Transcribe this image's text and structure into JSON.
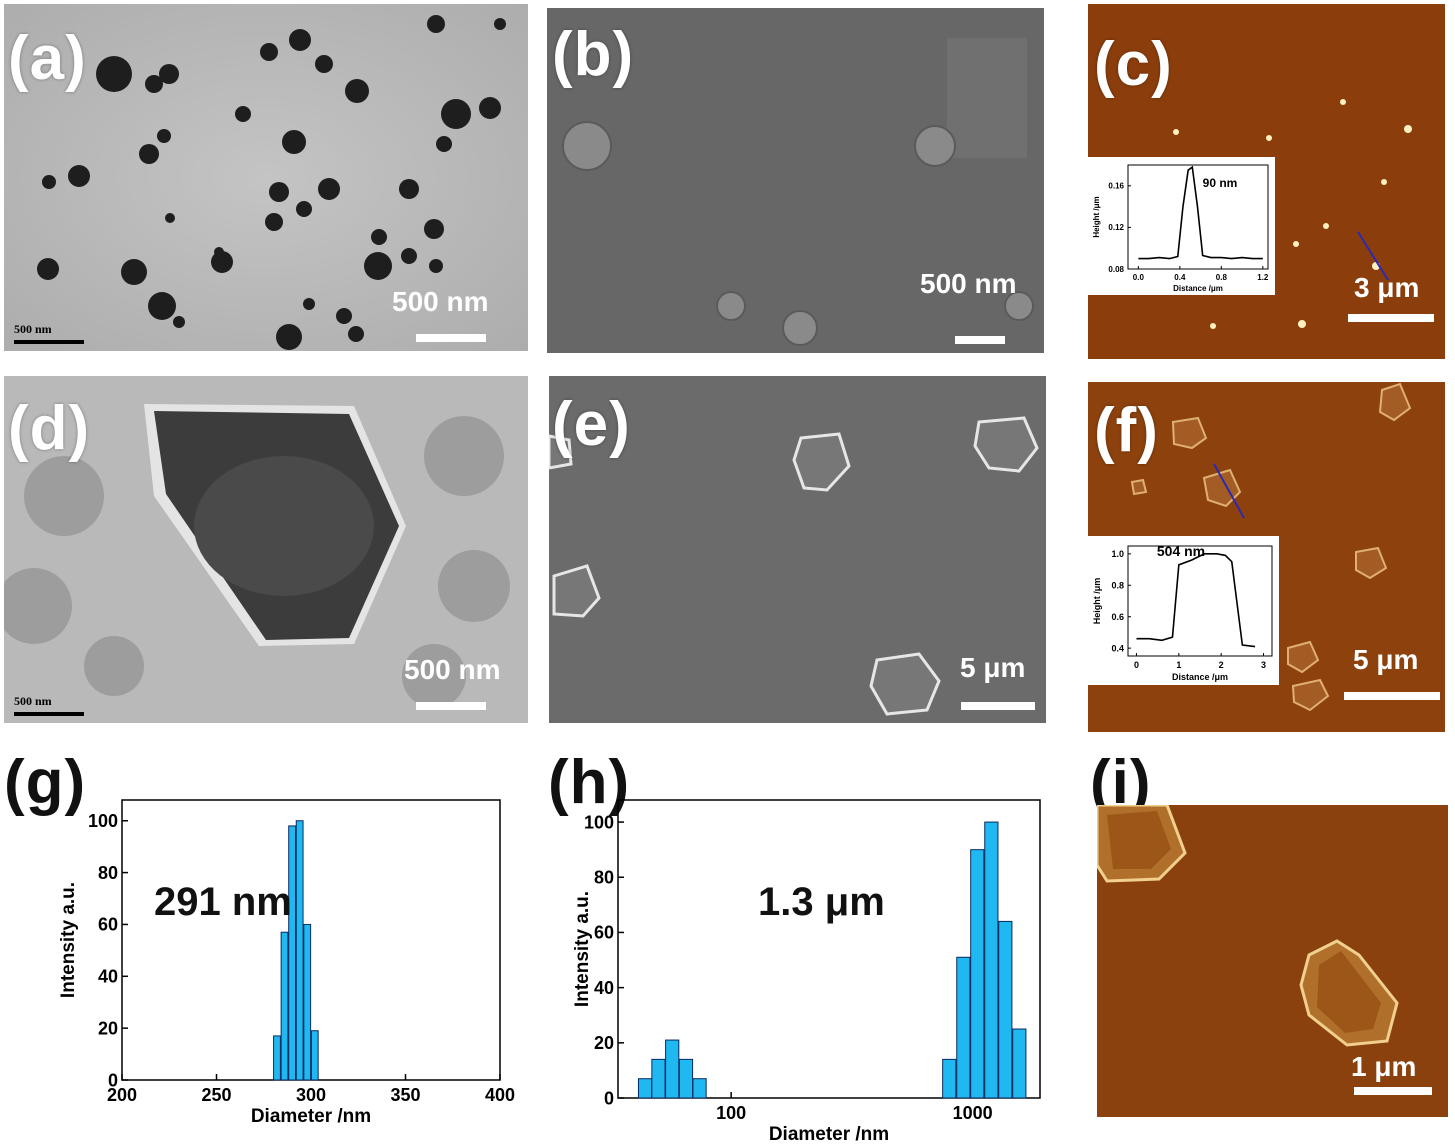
{
  "panels": {
    "a": {
      "letter": "(a)",
      "scale": "500 nm",
      "tiny_scale": "500 nm"
    },
    "b": {
      "letter": "(b)",
      "scale": "500 nm"
    },
    "c": {
      "letter": "(c)",
      "scale": "3 μm"
    },
    "d": {
      "letter": "(d)",
      "scale": "500 nm",
      "tiny_scale": "500 nm"
    },
    "e": {
      "letter": "(e)",
      "scale": "5 μm"
    },
    "f": {
      "letter": "(f)",
      "scale": "5 μm"
    },
    "g": {
      "letter": "(g)",
      "annotation": "291 nm"
    },
    "h": {
      "letter": "(h)",
      "annotation": "1.3 μm"
    },
    "i": {
      "letter": "(i)",
      "scale": "1 μm"
    }
  },
  "colors": {
    "bar_fill": "#1fb8f0",
    "afm_brown": "#8a3d0c",
    "sem_gray": "#6a6a6a",
    "tem_gray": "#bdbdbd"
  },
  "chart_data": [
    {
      "id": "c-inset",
      "type": "line",
      "annotation": "90 nm",
      "xlabel": "Distance /μm",
      "ylabel": "Height /μm",
      "xlim": [
        -0.1,
        1.25
      ],
      "ylim": [
        0.08,
        0.18
      ],
      "xticks": [
        "0.0",
        "0.4",
        "0.8",
        "1.2"
      ],
      "xtick_values": [
        0,
        0.4,
        0.8,
        1.2
      ],
      "yticks": [
        "0.08",
        "0.12",
        "0.16"
      ],
      "ytick_values": [
        0.08,
        0.12,
        0.16
      ],
      "x": [
        0,
        0.1,
        0.2,
        0.3,
        0.38,
        0.43,
        0.48,
        0.52,
        0.57,
        0.62,
        0.7,
        0.8,
        0.9,
        1.0,
        1.1,
        1.2
      ],
      "y": [
        0.09,
        0.09,
        0.091,
        0.09,
        0.092,
        0.14,
        0.175,
        0.178,
        0.14,
        0.093,
        0.091,
        0.091,
        0.09,
        0.091,
        0.09,
        0.09
      ]
    },
    {
      "id": "f-inset",
      "type": "line",
      "annotation": "504 nm",
      "xlabel": "Distance /μm",
      "ylabel": "Height /μm",
      "xlim": [
        -0.2,
        3.2
      ],
      "ylim": [
        0.35,
        1.05
      ],
      "xticks": [
        "0",
        "1",
        "2",
        "3"
      ],
      "xtick_values": [
        0,
        1,
        2,
        3
      ],
      "yticks": [
        "0.4",
        "0.6",
        "0.8",
        "1.0"
      ],
      "ytick_values": [
        0.4,
        0.6,
        0.8,
        1.0
      ],
      "x": [
        0,
        0.3,
        0.6,
        0.85,
        1.0,
        1.3,
        1.6,
        1.9,
        2.1,
        2.25,
        2.5,
        2.8
      ],
      "y": [
        0.46,
        0.46,
        0.45,
        0.47,
        0.93,
        0.96,
        1.0,
        1.0,
        0.99,
        0.95,
        0.42,
        0.41
      ]
    },
    {
      "id": "g",
      "type": "bar",
      "xlabel": "Diameter /nm",
      "ylabel": "Intensity a.u.",
      "xlim": [
        200,
        400
      ],
      "ylim": [
        0,
        108
      ],
      "xticks": [
        "200",
        "250",
        "300",
        "350",
        "400"
      ],
      "xtick_values": [
        200,
        250,
        300,
        350,
        400
      ],
      "yticks": [
        "0",
        "20",
        "40",
        "60",
        "80",
        "100"
      ],
      "ytick_values": [
        0,
        20,
        40,
        60,
        80,
        100
      ],
      "x": [
        282,
        286,
        290,
        294,
        298,
        302
      ],
      "bar_width": 3.6,
      "values": [
        17,
        57,
        98,
        100,
        60,
        19
      ]
    },
    {
      "id": "h",
      "type": "bar",
      "xscale": "log",
      "xlabel": "Diameter /nm",
      "ylabel": "Intensity a.u.",
      "xlim": [
        34,
        1900
      ],
      "ylim": [
        0,
        108
      ],
      "xticks": [
        "100",
        "1000"
      ],
      "xtick_values": [
        100,
        1000
      ],
      "yticks": [
        "0",
        "20",
        "40",
        "60",
        "80",
        "100"
      ],
      "ytick_values": [
        0,
        20,
        40,
        60,
        80,
        100
      ],
      "x": [
        44,
        50,
        57,
        65,
        74,
        800,
        915,
        1045,
        1195,
        1365,
        1560
      ],
      "values": [
        7,
        14,
        21,
        14,
        7,
        14,
        51,
        90,
        100,
        64,
        25
      ]
    }
  ]
}
